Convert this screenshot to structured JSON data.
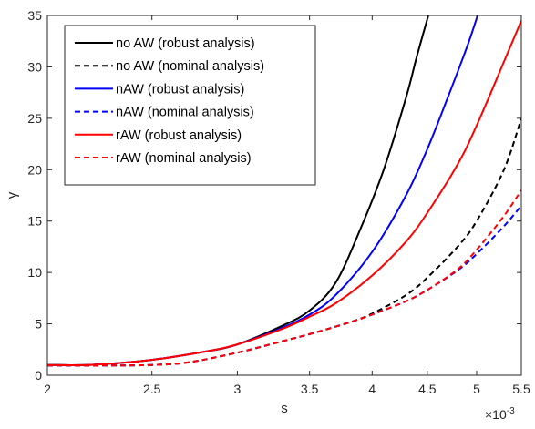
{
  "chart_data": {
    "type": "line",
    "xlabel": "s",
    "ylabel": "γ",
    "x_exponent_label": "×10",
    "x_exponent_power": "-3",
    "xlim": [
      0.002,
      0.0055
    ],
    "ylim": [
      0,
      35
    ],
    "x_scale": "log",
    "x_ticks": [
      0.002,
      0.0025,
      0.003,
      0.0035,
      0.004,
      0.0045,
      0.005,
      0.0055
    ],
    "x_tick_labels": [
      "2",
      "2.5",
      "3",
      "3.5",
      "4",
      "4.5",
      "5",
      "5.5"
    ],
    "y_ticks": [
      0,
      5,
      10,
      15,
      20,
      25,
      30,
      35
    ],
    "y_tick_labels": [
      "0",
      "5",
      "10",
      "15",
      "20",
      "25",
      "30",
      "35"
    ],
    "grid": false,
    "legend_position": "top-left",
    "series": [
      {
        "name": "no AW (robust analysis)",
        "color": "#000000",
        "dash": "solid",
        "x": [
          0.002,
          0.0022,
          0.0025,
          0.0028,
          0.003,
          0.0033,
          0.0035,
          0.0037,
          0.0039,
          0.0041,
          0.0043,
          0.0044,
          0.00451
        ],
        "y": [
          1.0,
          1.02,
          1.5,
          2.3,
          3.0,
          4.8,
          6.3,
          9.0,
          14.2,
          20.0,
          27.0,
          31.0,
          35.0
        ]
      },
      {
        "name": "no AW (nominal analysis)",
        "color": "#000000",
        "dash": "dashed",
        "x": [
          0.002,
          0.0023,
          0.0025,
          0.0027,
          0.003,
          0.0033,
          0.0035,
          0.0038,
          0.004,
          0.0043,
          0.0045,
          0.0048,
          0.005,
          0.0053,
          0.0055
        ],
        "y": [
          0.95,
          0.95,
          1.0,
          1.25,
          2.2,
          3.3,
          4.0,
          5.1,
          6.0,
          7.8,
          9.5,
          12.5,
          15.0,
          20.0,
          25.0
        ]
      },
      {
        "name": "nAW (robust analysis)",
        "color": "#0000ff",
        "dash": "solid",
        "x": [
          0.002,
          0.0022,
          0.0025,
          0.0028,
          0.003,
          0.0033,
          0.0035,
          0.0037,
          0.004,
          0.0043,
          0.0045,
          0.0047,
          0.0049,
          0.00501
        ],
        "y": [
          1.0,
          1.02,
          1.5,
          2.3,
          3.0,
          4.6,
          5.9,
          7.8,
          12.0,
          17.5,
          22.0,
          27.0,
          32.0,
          35.0
        ]
      },
      {
        "name": "nAW (nominal analysis)",
        "color": "#0000ff",
        "dash": "dashed",
        "x": [
          0.002,
          0.0023,
          0.0025,
          0.0027,
          0.003,
          0.0033,
          0.0035,
          0.0038,
          0.004,
          0.0043,
          0.0045,
          0.0048,
          0.005,
          0.0053,
          0.0055
        ],
        "y": [
          0.95,
          0.95,
          1.0,
          1.25,
          2.2,
          3.3,
          4.0,
          5.1,
          5.9,
          7.2,
          8.3,
          10.2,
          11.8,
          14.5,
          16.5
        ]
      },
      {
        "name": "rAW (robust analysis)",
        "color": "#ff0000",
        "dash": "solid",
        "x": [
          0.002,
          0.0022,
          0.0025,
          0.0028,
          0.003,
          0.0033,
          0.0035,
          0.0037,
          0.004,
          0.0043,
          0.0045,
          0.0048,
          0.005,
          0.0053,
          0.0055
        ],
        "y": [
          1.0,
          1.02,
          1.5,
          2.3,
          3.0,
          4.5,
          5.7,
          7.0,
          9.7,
          13.0,
          15.8,
          20.5,
          24.3,
          30.5,
          34.5
        ]
      },
      {
        "name": "rAW (nominal analysis)",
        "color": "#ff0000",
        "dash": "dashed",
        "x": [
          0.002,
          0.0023,
          0.0025,
          0.0027,
          0.003,
          0.0033,
          0.0035,
          0.0038,
          0.004,
          0.0043,
          0.0045,
          0.0048,
          0.005,
          0.0053,
          0.0055
        ],
        "y": [
          0.95,
          0.95,
          1.0,
          1.25,
          2.2,
          3.3,
          4.0,
          5.1,
          5.9,
          7.2,
          8.3,
          10.3,
          12.2,
          15.5,
          18.0
        ]
      }
    ]
  }
}
